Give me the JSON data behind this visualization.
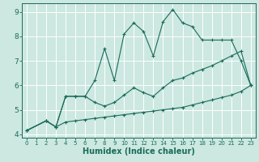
{
  "xlabel": "Humidex (Indice chaleur)",
  "bg_color": "#cce8e0",
  "line_color": "#1a6b5a",
  "xlim": [
    -0.5,
    23.5
  ],
  "ylim": [
    3.85,
    9.35
  ],
  "yticks": [
    4,
    5,
    6,
    7,
    8,
    9
  ],
  "xticks": [
    0,
    1,
    2,
    3,
    4,
    5,
    6,
    7,
    8,
    9,
    10,
    11,
    12,
    13,
    14,
    15,
    16,
    17,
    18,
    19,
    20,
    21,
    22,
    23
  ],
  "line1_x": [
    0,
    2,
    3,
    4,
    5,
    6,
    7,
    8,
    9,
    10,
    11,
    12,
    13,
    14,
    15,
    16,
    17,
    18,
    19,
    20,
    21,
    22,
    23
  ],
  "line1_y": [
    4.15,
    4.55,
    4.3,
    4.5,
    4.55,
    4.6,
    4.65,
    4.7,
    4.75,
    4.8,
    4.85,
    4.9,
    4.95,
    5.0,
    5.05,
    5.1,
    5.2,
    5.3,
    5.4,
    5.5,
    5.6,
    5.75,
    6.0
  ],
  "line2_x": [
    0,
    2,
    3,
    4,
    5,
    6,
    7,
    8,
    9,
    10,
    11,
    12,
    13,
    14,
    15,
    16,
    17,
    18,
    19,
    20,
    21,
    22,
    23
  ],
  "line2_y": [
    4.15,
    4.55,
    4.3,
    5.55,
    5.55,
    5.55,
    5.3,
    5.15,
    5.3,
    5.6,
    5.9,
    5.7,
    5.55,
    5.9,
    6.2,
    6.3,
    6.5,
    6.65,
    6.8,
    7.0,
    7.2,
    7.4,
    6.0
  ],
  "line3_x": [
    0,
    2,
    3,
    4,
    5,
    6,
    7,
    8,
    9,
    10,
    11,
    12,
    13,
    14,
    15,
    16,
    17,
    18,
    19,
    20,
    21,
    22,
    23
  ],
  "line3_y": [
    4.15,
    4.55,
    4.3,
    5.55,
    5.55,
    5.55,
    6.2,
    7.5,
    6.2,
    8.1,
    8.55,
    8.2,
    7.2,
    8.6,
    9.1,
    8.55,
    8.4,
    7.85,
    7.85,
    7.85,
    7.85,
    7.0,
    6.0
  ]
}
